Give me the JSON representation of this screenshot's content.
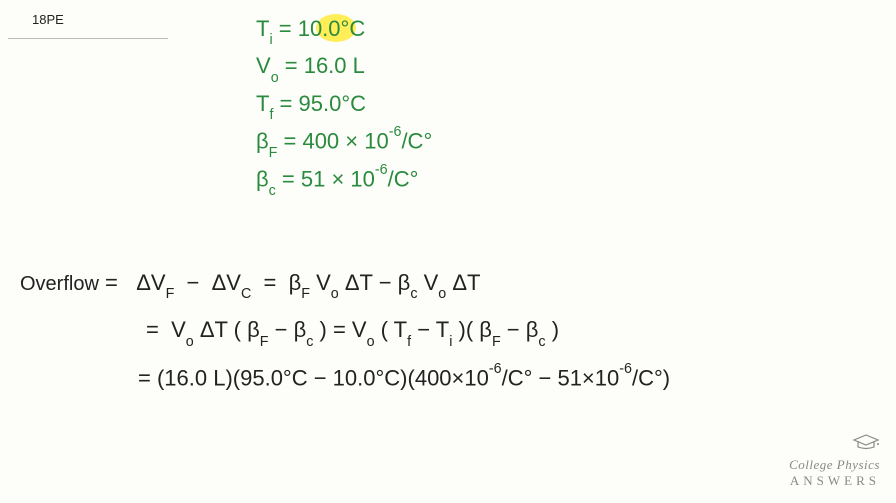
{
  "problem_label": "18PE",
  "given": {
    "line1": "T<sub>i</sub> = 10.0°C",
    "line2": "V<sub>o</sub> = 16.0 L",
    "line3": "T<sub>f</sub> = 95.0°C",
    "line4": "β<sub>F</sub> = 400 × 10<sup>-6</sup>/C°",
    "line5": "β<sub>c</sub> = 51 × 10<sup>-6</sup>/C°"
  },
  "work": {
    "line1_label": "Overflow",
    "line1": " = &nbsp; ΔV<sub>F</sub> &nbsp;−&nbsp; ΔV<sub>C</sub> &nbsp;=&nbsp; β<sub>F</sub> V<sub>o</sub> ΔT − β<sub>c</sub> V<sub>o</sub> ΔT",
    "line2": "= &nbsp;V<sub>o</sub> ΔT ( β<sub>F</sub> − β<sub>c</sub> ) = V<sub>o</sub> ( T<sub>f</sub> − T<sub>i</sub> )( β<sub>F</sub> − β<sub>c</sub> )",
    "line3": "= (16.0 L)(95.0°C − 10.0°C)(400×10<sup>-6</sup>/C° − 51×10<sup>-6</sup>/C°)"
  },
  "logo": {
    "top": "College Physics",
    "bottom": "ANSWERS"
  },
  "colors": {
    "given_text": "#2a8a3e",
    "work_text": "#222222",
    "highlight": "#ffeb3b",
    "background": "#fdfdfa",
    "logo_text": "#888888"
  }
}
